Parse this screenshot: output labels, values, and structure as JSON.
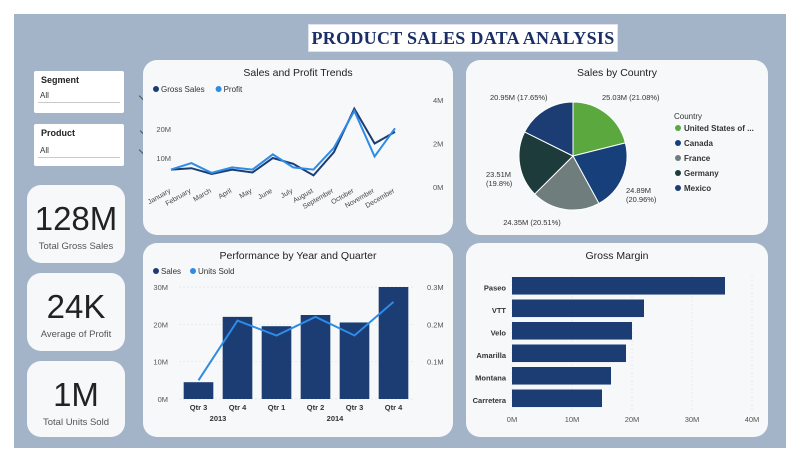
{
  "title": "PRODUCT SALES DATA ANALYSIS",
  "slicers": {
    "segment": {
      "label": "Segment",
      "value": "All"
    },
    "product": {
      "label": "Product",
      "value": "All"
    }
  },
  "kpis": [
    {
      "value": "128M",
      "caption": "Total Gross Sales"
    },
    {
      "value": "24K",
      "caption": "Average of Profit"
    },
    {
      "value": "1M",
      "caption": "Total Units Sold"
    }
  ],
  "colors": {
    "dark": "#1b3d73",
    "light": "#2e8be6",
    "green": "#5aa83e",
    "grey": "#6f7d7d",
    "darkgreen": "#1d3b3b",
    "mid": "#17407a"
  },
  "chart_data": [
    {
      "type": "line",
      "title": "Sales and Profit Trends",
      "categories": [
        "January",
        "February",
        "March",
        "April",
        "May",
        "June",
        "July",
        "August",
        "September",
        "October",
        "November",
        "December"
      ],
      "series": [
        {
          "name": "Gross Sales",
          "axis": "left",
          "values": [
            6,
            6.5,
            4.5,
            6,
            5,
            10,
            8,
            4,
            12,
            27,
            15,
            19
          ]
        },
        {
          "name": "Profit",
          "axis": "right",
          "values": [
            0.8,
            1.1,
            0.65,
            0.9,
            0.8,
            1.5,
            0.9,
            0.8,
            1.8,
            3.5,
            1.4,
            2.7
          ]
        }
      ],
      "y_left_ticks": [
        "10M",
        "20M"
      ],
      "y_left_lim": [
        0,
        30
      ],
      "y_right_ticks": [
        "0M",
        "2M",
        "4M"
      ],
      "y_right_lim": [
        0,
        4
      ]
    },
    {
      "type": "pie",
      "title": "Sales by Country",
      "legend_title": "Country",
      "slices": [
        {
          "name": "United States of ...",
          "value": 25.03,
          "label": "25.03M (21.08%)"
        },
        {
          "name": "Canada",
          "value": 24.89,
          "label": "24.89M (20.96%)"
        },
        {
          "name": "France",
          "value": 24.35,
          "label": "24.35M (20.51%)"
        },
        {
          "name": "Germany",
          "value": 23.51,
          "label": "23.51M (19.8%)"
        },
        {
          "name": "Mexico",
          "value": 20.95,
          "label": "20.95M (17.65%)"
        }
      ]
    },
    {
      "type": "bar",
      "title": "Performance by Year and Quarter",
      "categories": [
        "Qtr 3",
        "Qtr 4",
        "Qtr 1",
        "Qtr 2",
        "Qtr 3",
        "Qtr 4"
      ],
      "years": [
        {
          "label": "2013",
          "span": [
            0,
            1
          ]
        },
        {
          "label": "2014",
          "span": [
            2,
            5
          ]
        }
      ],
      "series": [
        {
          "name": "Sales",
          "type": "bar",
          "values": [
            4.5,
            22,
            19.5,
            22.5,
            20.5,
            30
          ]
        },
        {
          "name": "Units Sold",
          "type": "line",
          "values": [
            0.05,
            0.21,
            0.17,
            0.22,
            0.17,
            0.26
          ]
        }
      ],
      "y_left_ticks": [
        "0M",
        "10M",
        "20M",
        "30M"
      ],
      "y_left_lim": [
        0,
        30
      ],
      "y_right_ticks": [
        "0.1M",
        "0.2M",
        "0.3M"
      ],
      "y_right_lim": [
        0,
        0.3
      ]
    },
    {
      "type": "bar",
      "orientation": "horizontal",
      "title": "Gross Margin",
      "categories": [
        "Paseo",
        "VTT",
        "Velo",
        "Amarilla",
        "Montana",
        "Carretera"
      ],
      "values": [
        35.5,
        22,
        20,
        19,
        16.5,
        15
      ],
      "x_ticks": [
        "0M",
        "10M",
        "20M",
        "30M",
        "40M"
      ],
      "xlim": [
        0,
        40
      ]
    }
  ]
}
